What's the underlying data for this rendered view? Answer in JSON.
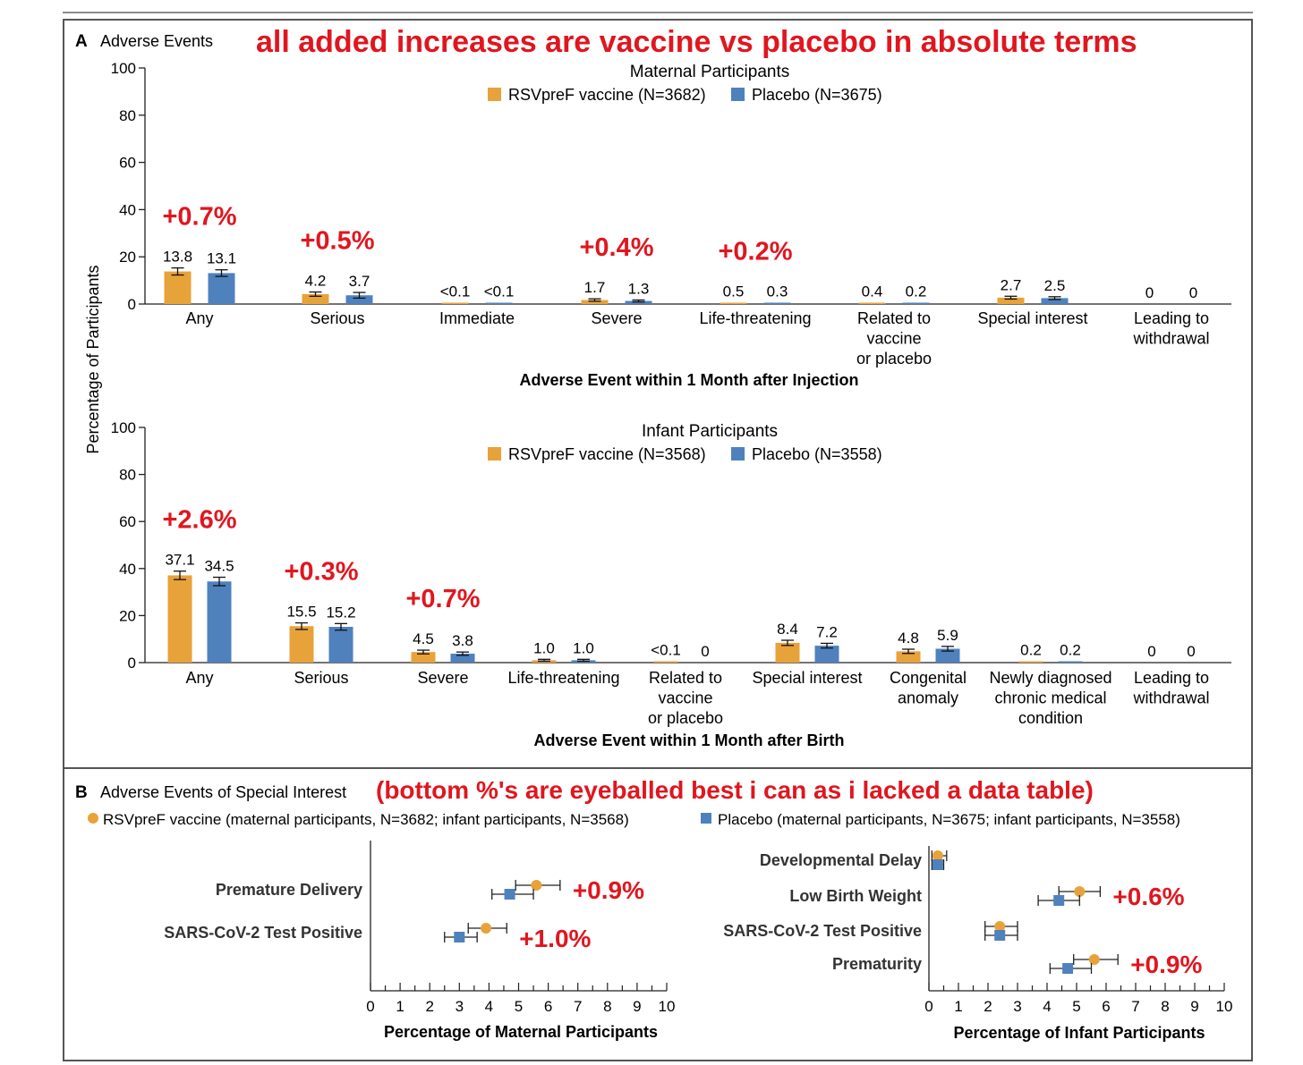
{
  "panel_a": {
    "letter": "A",
    "title": "Adverse Events",
    "note": "all added increases are vaccine vs placebo in absolute terms",
    "y_label": "Percentage of Participants"
  },
  "panel_b": {
    "letter": "B",
    "title": "Adverse Events of Special Interest",
    "note": "(bottom %'s are eyeballed best i can as i lacked a data table)",
    "legend_vaccine": "RSVpreF vaccine (maternal participants, N=3682; infant participants, N=3568)",
    "legend_placebo": "Placebo (maternal participants, N=3675; infant participants, N=3558)"
  },
  "colors": {
    "vaccine": "#e8a23a",
    "placebo": "#4f81bd",
    "annotation": "#e0161f",
    "axis": "#231f20"
  },
  "chart_data": [
    {
      "type": "bar",
      "title": "Maternal Participants",
      "xlabel": "Adverse Event within 1 Month after Injection",
      "ylabel": "Percentage of Participants",
      "ylim": [
        0,
        100
      ],
      "yticks": [
        0,
        20,
        40,
        60,
        80,
        100
      ],
      "categories": [
        "Any",
        "Serious",
        "Immediate",
        "Severe",
        "Life-threatening",
        "Related to\nvaccine\nor placebo",
        "Special interest",
        "Leading to\nwithdrawal"
      ],
      "series": [
        {
          "name": "RSVpreF vaccine (N=3682)",
          "values": [
            13.8,
            4.2,
            0.05,
            1.7,
            0.5,
            0.4,
            2.7,
            0
          ],
          "labels": [
            "13.8",
            "4.2",
            "<0.1",
            "1.7",
            "0.5",
            "0.4",
            "2.7",
            "0"
          ],
          "errors": [
            1.5,
            0.9,
            null,
            0.5,
            null,
            null,
            0.6,
            null
          ]
        },
        {
          "name": "Placebo (N=3675)",
          "values": [
            13.1,
            3.7,
            0.05,
            1.3,
            0.3,
            0.2,
            2.5,
            0
          ],
          "labels": [
            "13.1",
            "3.7",
            "<0.1",
            "1.3",
            "0.3",
            "0.2",
            "2.5",
            "0"
          ],
          "errors": [
            1.4,
            1.2,
            null,
            0.4,
            null,
            null,
            0.6,
            null
          ]
        }
      ],
      "annotations": [
        {
          "category": "Any",
          "text": "+0.7%"
        },
        {
          "category": "Serious",
          "text": "+0.5%"
        },
        {
          "category": "Severe",
          "text": "+0.4%"
        },
        {
          "category": "Life-threatening",
          "text": "+0.2%"
        }
      ]
    },
    {
      "type": "bar",
      "title": "Infant Participants",
      "xlabel": "Adverse Event within 1 Month after Birth",
      "ylabel": "Percentage of Participants",
      "ylim": [
        0,
        100
      ],
      "yticks": [
        0,
        20,
        40,
        60,
        80,
        100
      ],
      "categories": [
        "Any",
        "Serious",
        "Severe",
        "Life-threatening",
        "Related to\nvaccine\nor placebo",
        "Special interest",
        "Congenital\nanomaly",
        "Newly diagnosed\nchronic medical\ncondition",
        "Leading to\nwithdrawal"
      ],
      "series": [
        {
          "name": "RSVpreF vaccine (N=3568)",
          "values": [
            37.1,
            15.5,
            4.5,
            1.0,
            0.05,
            8.4,
            4.8,
            0.2,
            0
          ],
          "labels": [
            "37.1",
            "15.5",
            "4.5",
            "1.0",
            "<0.1",
            "8.4",
            "4.8",
            "0.2",
            "0"
          ],
          "errors": [
            1.8,
            1.4,
            0.8,
            0.4,
            null,
            1.1,
            0.9,
            null,
            null
          ]
        },
        {
          "name": "Placebo (N=3558)",
          "values": [
            34.5,
            15.2,
            3.8,
            1.0,
            0,
            7.2,
            5.9,
            0.2,
            0
          ],
          "labels": [
            "34.5",
            "15.2",
            "3.8",
            "1.0",
            "0",
            "7.2",
            "5.9",
            "0.2",
            "0"
          ],
          "errors": [
            1.8,
            1.4,
            0.7,
            0.4,
            null,
            1.0,
            1.0,
            null,
            null
          ]
        }
      ],
      "annotations": [
        {
          "category": "Any",
          "text": "+2.6%"
        },
        {
          "category": "Serious",
          "text": "+0.3%"
        },
        {
          "category": "Severe",
          "text": "+0.7%"
        }
      ]
    },
    {
      "type": "scatter",
      "title": "",
      "xlabel": "Percentage of Maternal Participants",
      "xlim": [
        0,
        10
      ],
      "xticks": [
        0,
        1,
        2,
        3,
        4,
        5,
        6,
        7,
        8,
        9,
        10
      ],
      "categories": [
        "Premature Delivery",
        "SARS-CoV-2 Test Positive"
      ],
      "series": [
        {
          "name": "RSVpreF vaccine",
          "values": [
            5.6,
            3.9
          ],
          "ci_low": [
            4.9,
            3.3
          ],
          "ci_high": [
            6.4,
            4.6
          ]
        },
        {
          "name": "Placebo",
          "values": [
            4.7,
            3.0
          ],
          "ci_low": [
            4.1,
            2.5
          ],
          "ci_high": [
            5.5,
            3.6
          ]
        }
      ],
      "annotations": [
        {
          "category": "Premature Delivery",
          "text": "+0.9%"
        },
        {
          "category": "SARS-CoV-2 Test Positive",
          "text": "+1.0%"
        }
      ]
    },
    {
      "type": "scatter",
      "title": "",
      "xlabel": "Percentage of Infant Participants",
      "xlim": [
        0,
        10
      ],
      "xticks": [
        0,
        1,
        2,
        3,
        4,
        5,
        6,
        7,
        8,
        9,
        10
      ],
      "categories": [
        "Developmental Delay",
        "Low Birth Weight",
        "SARS-CoV-2 Test Positive",
        "Prematurity"
      ],
      "series": [
        {
          "name": "RSVpreF vaccine",
          "values": [
            0.3,
            5.1,
            2.4,
            5.6
          ],
          "ci_low": [
            0.1,
            4.4,
            1.9,
            4.9
          ],
          "ci_high": [
            0.6,
            5.8,
            3.0,
            6.4
          ]
        },
        {
          "name": "Placebo",
          "values": [
            0.3,
            4.4,
            2.4,
            4.7
          ],
          "ci_low": [
            0.1,
            3.7,
            1.9,
            4.1
          ],
          "ci_high": [
            0.5,
            5.1,
            3.0,
            5.5
          ]
        }
      ],
      "annotations": [
        {
          "category": "Low Birth Weight",
          "text": "+0.6%"
        },
        {
          "category": "Prematurity",
          "text": "+0.9%"
        }
      ]
    }
  ]
}
